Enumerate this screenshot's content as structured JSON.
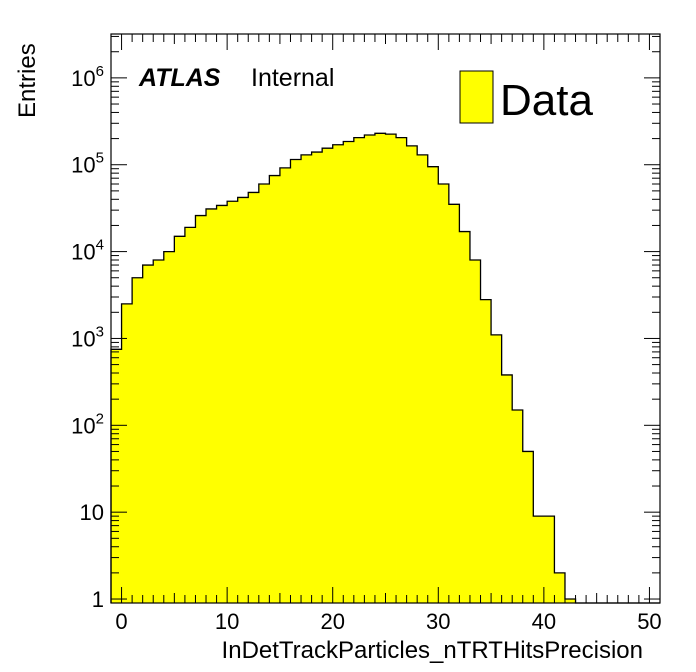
{
  "chart_data": {
    "type": "histogram",
    "xlabel": "InDetTrackParticles_nTRTHitsPrecision",
    "ylabel": "Entries",
    "xlim": [
      -1,
      51
    ],
    "ylim": [
      0.9,
      3200000
    ],
    "yscale": "log",
    "bin_width": 1,
    "bin_start": -1,
    "x_ticks": [
      "0",
      "10",
      "20",
      "30",
      "40",
      "50"
    ],
    "y_ticks": [
      {
        "value": 1,
        "base": "1",
        "exp": ""
      },
      {
        "value": 10,
        "base": "10",
        "exp": ""
      },
      {
        "value": 100,
        "base": "10",
        "exp": "2"
      },
      {
        "value": 1000,
        "base": "10",
        "exp": "3"
      },
      {
        "value": 10000,
        "base": "10",
        "exp": "4"
      },
      {
        "value": 100000,
        "base": "10",
        "exp": "5"
      },
      {
        "value": 1000000,
        "base": "10",
        "exp": "6"
      }
    ],
    "series": [
      {
        "name": "Data",
        "fill": "#ffff00",
        "line": "#000000",
        "values": [
          750,
          2500,
          5000,
          7000,
          8000,
          10000,
          15000,
          19000,
          26000,
          31000,
          34000,
          38000,
          42000,
          48000,
          60000,
          75000,
          92000,
          115000,
          130000,
          140000,
          155000,
          170000,
          185000,
          205000,
          220000,
          230000,
          225000,
          205000,
          165000,
          130000,
          95000,
          60000,
          35000,
          17000,
          8000,
          2800,
          1100,
          380,
          150,
          50,
          9,
          9,
          2,
          1,
          0,
          0,
          0,
          0,
          0,
          0,
          0,
          0
        ]
      }
    ],
    "annotation": {
      "bold": "ATLAS",
      "text": "Internal"
    },
    "legend": {
      "position": "top-right",
      "label": "Data"
    }
  }
}
